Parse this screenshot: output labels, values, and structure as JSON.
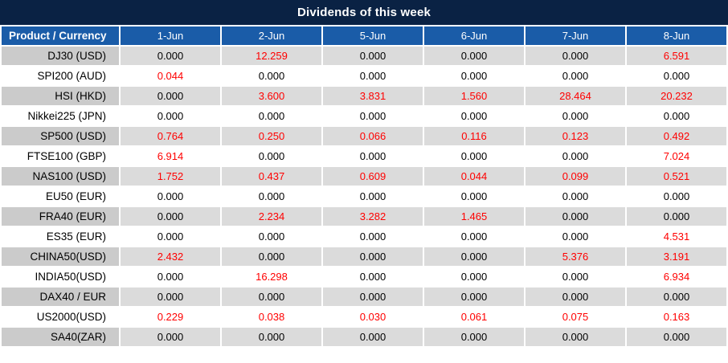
{
  "title": "Dividends of this week",
  "colors": {
    "title_bg": "#0A2244",
    "header_bg": "#1A5CA8",
    "header_text": "#FFFFFF",
    "row_alt_bg": "#DBDBDB",
    "product_alt_bg": "#CBCBCB",
    "value_text": "#000000",
    "nonzero_value_text": "#FF0000"
  },
  "chart_data": {
    "type": "table",
    "title": "Dividends of this week",
    "columns": [
      "Product / Currency",
      "1-Jun",
      "2-Jun",
      "5-Jun",
      "6-Jun",
      "7-Jun",
      "8-Jun"
    ],
    "rows": [
      {
        "product": "DJ30 (USD)",
        "values": [
          "0.000",
          "12.259",
          "0.000",
          "0.000",
          "0.000",
          "6.591"
        ]
      },
      {
        "product": "SPI200 (AUD)",
        "values": [
          "0.044",
          "0.000",
          "0.000",
          "0.000",
          "0.000",
          "0.000"
        ]
      },
      {
        "product": "HSI (HKD)",
        "values": [
          "0.000",
          "3.600",
          "3.831",
          "1.560",
          "28.464",
          "20.232"
        ]
      },
      {
        "product": "Nikkei225 (JPN)",
        "values": [
          "0.000",
          "0.000",
          "0.000",
          "0.000",
          "0.000",
          "0.000"
        ]
      },
      {
        "product": "SP500 (USD)",
        "values": [
          "0.764",
          "0.250",
          "0.066",
          "0.116",
          "0.123",
          "0.492"
        ]
      },
      {
        "product": "FTSE100 (GBP)",
        "values": [
          "6.914",
          "0.000",
          "0.000",
          "0.000",
          "0.000",
          "7.024"
        ]
      },
      {
        "product": "NAS100 (USD)",
        "values": [
          "1.752",
          "0.437",
          "0.609",
          "0.044",
          "0.099",
          "0.521"
        ]
      },
      {
        "product": "EU50 (EUR)",
        "values": [
          "0.000",
          "0.000",
          "0.000",
          "0.000",
          "0.000",
          "0.000"
        ]
      },
      {
        "product": "FRA40 (EUR)",
        "values": [
          "0.000",
          "2.234",
          "3.282",
          "1.465",
          "0.000",
          "0.000"
        ]
      },
      {
        "product": "ES35 (EUR)",
        "values": [
          "0.000",
          "0.000",
          "0.000",
          "0.000",
          "0.000",
          "4.531"
        ]
      },
      {
        "product": "CHINA50(USD)",
        "values": [
          "2.432",
          "0.000",
          "0.000",
          "0.000",
          "5.376",
          "3.191"
        ]
      },
      {
        "product": "INDIA50(USD)",
        "values": [
          "0.000",
          "16.298",
          "0.000",
          "0.000",
          "0.000",
          "6.934"
        ]
      },
      {
        "product": "DAX40 / EUR",
        "values": [
          "0.000",
          "0.000",
          "0.000",
          "0.000",
          "0.000",
          "0.000"
        ]
      },
      {
        "product": "US2000(USD)",
        "values": [
          "0.229",
          "0.038",
          "0.030",
          "0.061",
          "0.075",
          "0.163"
        ]
      },
      {
        "product": "SA40(ZAR)",
        "values": [
          "0.000",
          "0.000",
          "0.000",
          "0.000",
          "0.000",
          "0.000"
        ]
      }
    ],
    "value_color_rule": "non-zero values are shown in red, zero values in black",
    "row_striping": "odd rows gray, even rows white"
  }
}
